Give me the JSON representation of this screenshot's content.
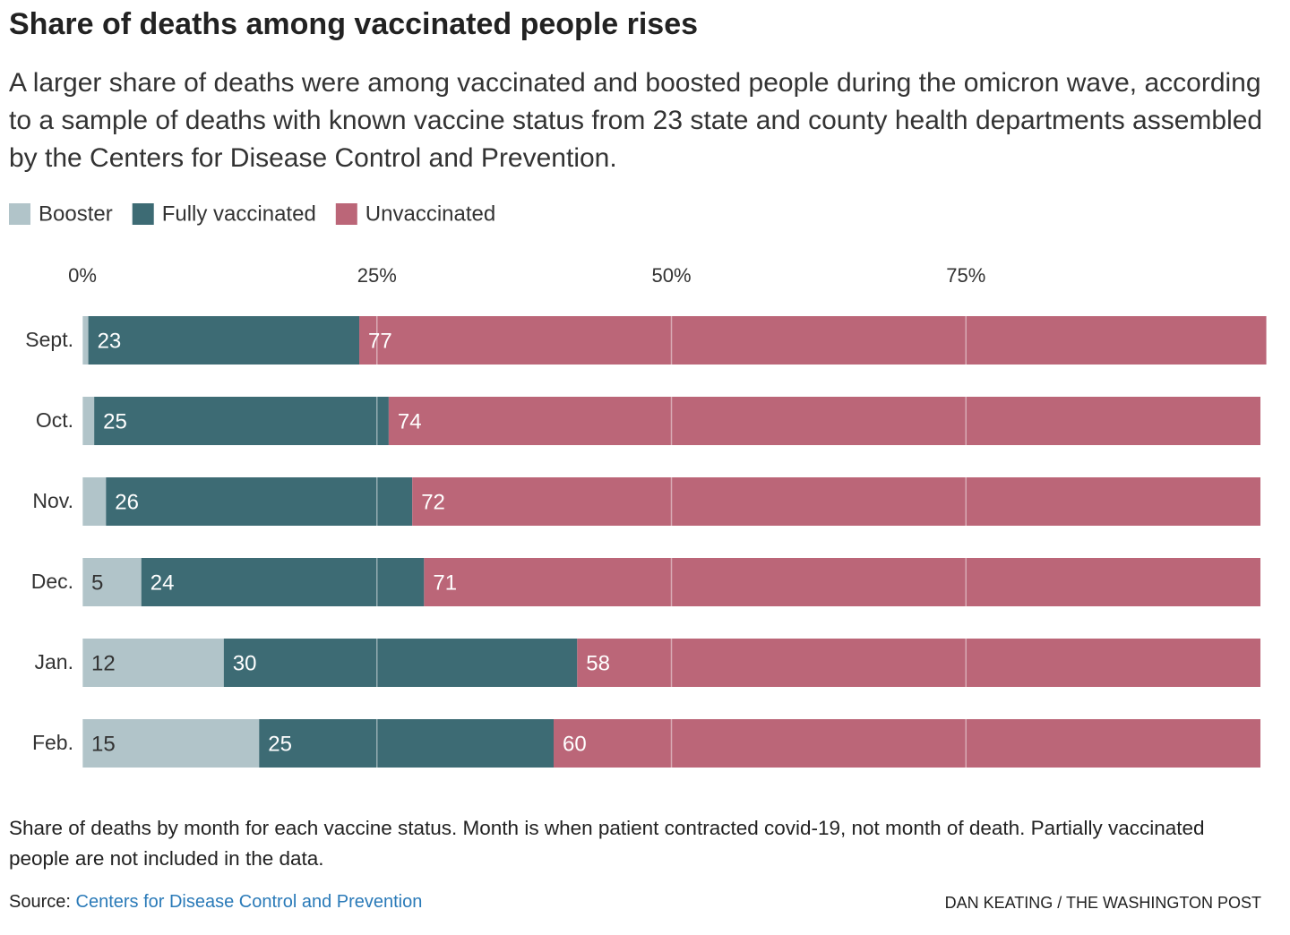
{
  "chart_data": {
    "type": "stacked-bar-horizontal",
    "title": "Share of deaths among vaccinated people rises",
    "subtitle": "A larger share of deaths were among vaccinated and boosted people during the omicron wave, according to a sample of deaths with known vaccine status from 23 state and county health departments assembled by the Centers for Disease Control and Prevention.",
    "categories": [
      "Sept.",
      "Oct.",
      "Nov.",
      "Dec.",
      "Jan.",
      "Feb."
    ],
    "series": [
      {
        "name": "Booster",
        "color": "#b1c4c9",
        "values": [
          0.5,
          1,
          2,
          5,
          12,
          15
        ]
      },
      {
        "name": "Fully vaccinated",
        "color": "#3d6b74",
        "values": [
          23,
          25,
          26,
          24,
          30,
          25
        ]
      },
      {
        "name": "Unvaccinated",
        "color": "#bb6678",
        "values": [
          77,
          74,
          72,
          71,
          58,
          60
        ]
      }
    ],
    "xlim": [
      0,
      100
    ],
    "xticks": [
      {
        "value": 0,
        "label": "0%"
      },
      {
        "value": 25,
        "label": "25%"
      },
      {
        "value": 50,
        "label": "50%"
      },
      {
        "value": 75,
        "label": "75%"
      }
    ],
    "grid": true,
    "note": "Share of deaths by month for each vaccine status. Month is when patient contracted covid-19, not month of death. Partially vaccinated people are not included in the data.",
    "source_label": "Source:",
    "source": "Centers for Disease Control and Prevention",
    "credit": "DAN KEATING / THE WASHINGTON POST"
  }
}
